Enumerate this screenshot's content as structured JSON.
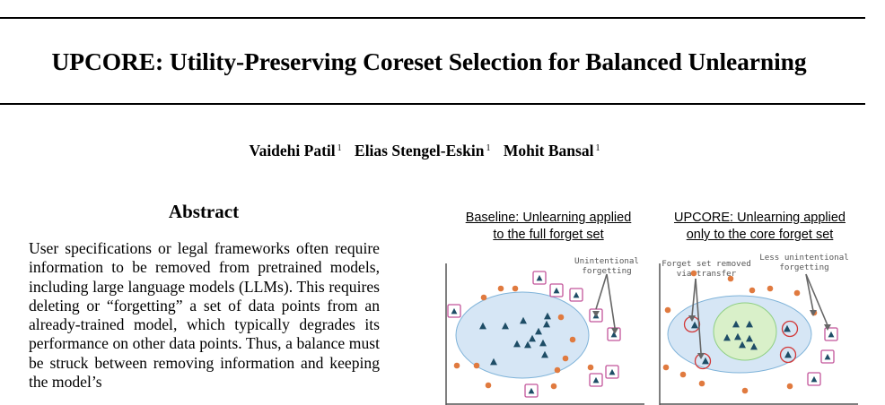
{
  "paper": {
    "title": "UPCORE: Utility-Preserving Coreset Selection for Balanced Unlearning",
    "authors": [
      {
        "name": "Vaidehi Patil",
        "affil": "1"
      },
      {
        "name": "Elias Stengel-Eskin",
        "affil": "1"
      },
      {
        "name": "Mohit Bansal",
        "affil": "1"
      }
    ],
    "abstract_heading": "Abstract",
    "abstract_text": "User specifications or legal frameworks often require information to be removed from pretrained models, including large language models (LLMs). This requires deleting or “forgetting” a set of data points from an already-trained model, which typically degrades its performance on other data points. Thus, a balance must be struck between removing information and keeping the model’s"
  },
  "figure": {
    "left_caption": [
      "Baseline: Unlearning applied",
      "to the full forget set"
    ],
    "right_caption": [
      "UPCORE: Unlearning applied",
      "only to the core forget set"
    ],
    "left_annotation": [
      "Unintentional",
      "forgetting"
    ],
    "right_annotation_1": [
      "Forget set removed",
      "via transfer"
    ],
    "right_annotation_2": [
      "Less unintentional",
      "forgetting"
    ],
    "colors": {
      "ellipse_fill": "#d6e6f5",
      "ellipse_stroke": "#7fb3d9",
      "core_fill": "#d9f0c9",
      "core_stroke": "#8fcf83",
      "triangle": "#1e4d66",
      "dot": "#e07a3f",
      "box": "#c2559a",
      "circle": "#d23838",
      "arrow": "#666666"
    }
  }
}
